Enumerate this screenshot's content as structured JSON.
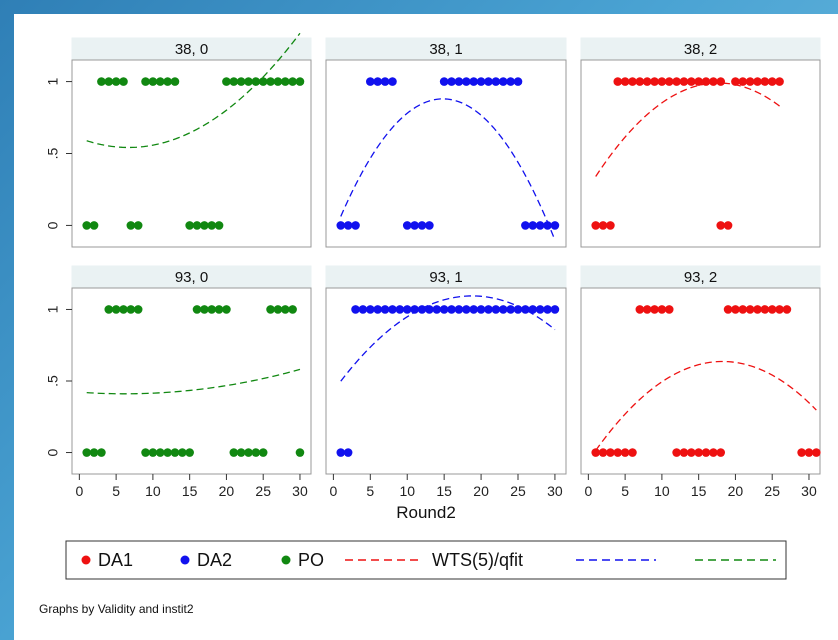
{
  "chart_data": {
    "type": "scatter",
    "xlabel": "Round2",
    "note": "Graphs by Validity and instit2",
    "xlim": [
      -1,
      31.5
    ],
    "ylim": [
      -0.15,
      1.15
    ],
    "xticks": [
      0,
      5,
      10,
      15,
      20,
      25,
      30
    ],
    "yticks": [
      0,
      0.5,
      1
    ],
    "ytick_labels": [
      "0",
      ".5",
      "1"
    ],
    "grid": false,
    "legend_position": "bottom",
    "legend": [
      {
        "label": "DA1",
        "kind": "marker",
        "color": "#ee1111"
      },
      {
        "label": "DA2",
        "kind": "marker",
        "color": "#1111ee"
      },
      {
        "label": "PO",
        "kind": "marker",
        "color": "#118811"
      },
      {
        "label": "WTS(5)/qfit",
        "kind": "line",
        "color": "#ee1111"
      },
      {
        "label": "",
        "kind": "line",
        "color": "#1111ee"
      },
      {
        "label": "",
        "kind": "line",
        "color": "#118811"
      }
    ],
    "panels": [
      {
        "label": "38, 0",
        "color": "#118811",
        "zeros": [
          1,
          2,
          7,
          8,
          15,
          16,
          17,
          18,
          19
        ],
        "ones": [
          3,
          4,
          5,
          6,
          9,
          10,
          11,
          12,
          13,
          20,
          21,
          22,
          23,
          24,
          25,
          26,
          27,
          28,
          29,
          30
        ],
        "fit": {
          "x0": 1,
          "x1": 30,
          "coef": [
            0.607,
            -0.0195,
            0.00146
          ]
        }
      },
      {
        "label": "38, 1",
        "color": "#1111ee",
        "zeros": [
          1,
          2,
          3,
          10,
          11,
          12,
          13,
          26,
          27,
          28,
          29,
          30
        ],
        "ones": [
          5,
          6,
          7,
          8,
          15,
          16,
          17,
          18,
          19,
          20,
          21,
          22,
          23,
          24,
          25
        ],
        "fit": {
          "x0": 1,
          "x1": 30,
          "coef": [
            -0.06,
            0.1267,
            -0.00427
          ]
        }
      },
      {
        "label": "38, 2",
        "color": "#ee1111",
        "zeros": [
          1,
          2,
          3,
          18,
          19
        ],
        "ones": [
          4,
          5,
          6,
          7,
          8,
          9,
          10,
          11,
          12,
          13,
          14,
          15,
          16,
          17,
          18,
          20,
          21,
          22,
          23,
          24,
          25,
          26
        ],
        "fit": {
          "x0": 1,
          "x1": 26,
          "coef": [
            0.26,
            0.0825,
            -0.00233
          ]
        }
      },
      {
        "label": "93, 0",
        "color": "#118811",
        "zeros": [
          1,
          2,
          3,
          9,
          10,
          11,
          12,
          13,
          14,
          15,
          21,
          22,
          23,
          24,
          25,
          30
        ],
        "ones": [
          4,
          5,
          6,
          7,
          8,
          16,
          17,
          18,
          19,
          20,
          26,
          27,
          28,
          29
        ],
        "fit": {
          "x0": 1,
          "x1": 30,
          "coef": [
            0.422,
            -0.0037,
            0.0003
          ]
        }
      },
      {
        "label": "93, 1",
        "color": "#1111ee",
        "zeros": [
          1,
          2
        ],
        "ones": [
          3,
          4,
          5,
          6,
          7,
          8,
          9,
          10,
          11,
          12,
          13,
          14,
          15,
          16,
          17,
          18,
          19,
          20,
          21,
          22,
          23,
          24,
          25,
          26,
          27,
          28,
          29,
          30
        ],
        "fit": {
          "x0": 1,
          "x1": 30,
          "coef": [
            0.43,
            0.0707,
            -0.00188
          ]
        }
      },
      {
        "label": "93, 2",
        "color": "#ee1111",
        "zeros": [
          1,
          2,
          3,
          4,
          5,
          6,
          12,
          13,
          14,
          15,
          16,
          17,
          18,
          29,
          30,
          31
        ],
        "ones": [
          7,
          8,
          9,
          10,
          11,
          19,
          20,
          21,
          22,
          23,
          24,
          25,
          26,
          27
        ],
        "fit": {
          "x0": 1,
          "x1": 31,
          "coef": [
            -0.06,
            0.0763,
            -0.00209
          ]
        }
      }
    ]
  }
}
